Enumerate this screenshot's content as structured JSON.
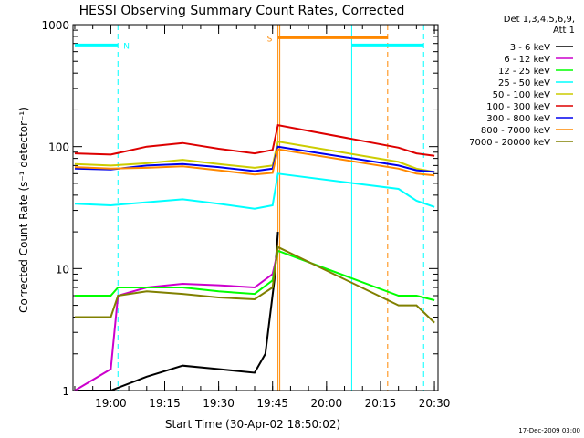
{
  "chart_data": {
    "type": "line",
    "title": "HESSI Observing Summary Count Rates, Corrected",
    "xlabel": "Start Time (30-Apr-02 18:50:02)",
    "ylabel": "Corrected Count Rate (s⁻¹ detector⁻¹)",
    "yscale": "log",
    "ylim": [
      1,
      1000
    ],
    "xlim_minutes": [
      -0.5,
      101
    ],
    "x_unit": "minutes after 18:50:02",
    "x_ticks": [
      {
        "label": "19:00",
        "value": 10
      },
      {
        "label": "19:15",
        "value": 25
      },
      {
        "label": "19:30",
        "value": 40
      },
      {
        "label": "19:45",
        "value": 55
      },
      {
        "label": "20:00",
        "value": 70
      },
      {
        "label": "20:15",
        "value": 85
      },
      {
        "label": "20:30",
        "value": 100
      }
    ],
    "y_ticks": [
      {
        "label": "1",
        "value": 1
      },
      {
        "label": "10",
        "value": 10
      },
      {
        "label": "100",
        "value": 100
      },
      {
        "label": "1000",
        "value": 1000
      }
    ],
    "legend": {
      "placement": "outside-right",
      "header": [
        "Det 1,3,4,5,6,9,",
        "Att 1"
      ]
    },
    "footer_timestamp": "17-Dec-2009 03:00",
    "series": [
      {
        "name": "3 - 6 keV",
        "color": "#000000",
        "x": [
          0,
          10,
          20,
          30,
          40,
          50,
          53,
          55.5,
          56.5
        ],
        "y": [
          1,
          1,
          1.3,
          1.6,
          1.5,
          1.4,
          2,
          8,
          20
        ]
      },
      {
        "name": "6 - 12 keV",
        "color": "#cc00cc",
        "x": [
          0,
          10,
          12,
          20,
          30,
          40,
          50,
          55,
          56.5
        ],
        "y": [
          1,
          1.5,
          6,
          7,
          7.5,
          7.3,
          7,
          9,
          14
        ]
      },
      {
        "name": "12 - 25 keV",
        "color": "#00ff00",
        "x": [
          0,
          10,
          12,
          20,
          30,
          40,
          50,
          55,
          56.5,
          90,
          95,
          100
        ],
        "y": [
          6,
          6,
          7,
          7,
          7,
          6.5,
          6.2,
          8,
          14,
          6,
          6,
          5.5
        ]
      },
      {
        "name": "25 - 50 keV",
        "color": "#00ffff",
        "x": [
          0,
          10,
          20,
          30,
          40,
          50,
          55,
          56.5,
          90,
          95,
          100
        ],
        "y": [
          34,
          33,
          35,
          37,
          34,
          31,
          33,
          60,
          45,
          36,
          32
        ]
      },
      {
        "name": "50 - 100 keV",
        "color": "#cccc00",
        "x": [
          0,
          10,
          20,
          30,
          40,
          50,
          55,
          56.5,
          90,
          95,
          100
        ],
        "y": [
          72,
          70,
          73,
          78,
          72,
          67,
          70,
          110,
          75,
          66,
          62
        ]
      },
      {
        "name": "100 - 300 keV",
        "color": "#dd0000",
        "x": [
          0,
          10,
          20,
          30,
          40,
          50,
          55,
          56.5,
          90,
          95,
          100
        ],
        "y": [
          88,
          86,
          100,
          107,
          96,
          88,
          94,
          150,
          98,
          88,
          84
        ]
      },
      {
        "name": "300 - 800 keV",
        "color": "#0000ee",
        "x": [
          0,
          10,
          20,
          30,
          40,
          50,
          55,
          56.5,
          90,
          95,
          100
        ],
        "y": [
          66,
          65,
          70,
          72,
          68,
          63,
          66,
          100,
          70,
          64,
          62
        ]
      },
      {
        "name": "800 - 7000 keV",
        "color": "#ff8800",
        "x": [
          0,
          10,
          20,
          30,
          40,
          50,
          55,
          56.5,
          90,
          95,
          100
        ],
        "y": [
          68,
          66,
          67,
          69,
          64,
          59,
          61,
          95,
          66,
          60,
          58
        ]
      },
      {
        "name": "7000 - 20000 keV",
        "color": "#808000",
        "x": [
          0,
          10,
          12,
          20,
          30,
          40,
          50,
          55,
          56.5,
          90,
          95,
          100
        ],
        "y": [
          4,
          4,
          6,
          6.5,
          6.2,
          5.8,
          5.6,
          7,
          15,
          5,
          5,
          3.6
        ]
      }
    ],
    "annotations": [
      {
        "label": "N",
        "color": "#00ffff",
        "bar_x": [
          0,
          12
        ],
        "bar_y": 680,
        "dashed_x": [
          12,
          97
        ],
        "solid_x": [
          77
        ]
      },
      {
        "label": "S",
        "color": "#ff8800",
        "bar_x": [
          56.5,
          87
        ],
        "bar_y": 780,
        "dashed_x": [
          87
        ],
        "solid_x": [
          56.5,
          57
        ]
      },
      {
        "label": "",
        "color": "#00ffff",
        "bar_x": [
          77,
          97
        ],
        "bar_y": 680,
        "dashed_x": [],
        "solid_x": []
      }
    ]
  }
}
